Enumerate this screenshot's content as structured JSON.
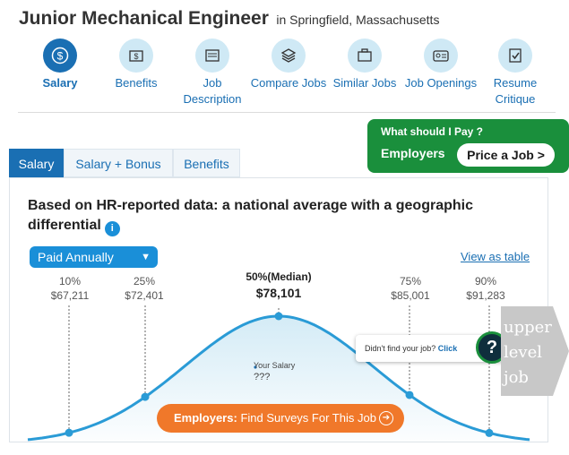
{
  "header": {
    "job_title": "Junior Mechanical Engineer",
    "location_text": "in Springfield, Massachusetts"
  },
  "nav": {
    "items": [
      {
        "label": "Salary",
        "icon": "dollar-coin-icon",
        "active": true
      },
      {
        "label": "Benefits",
        "icon": "wallet-icon",
        "active": false
      },
      {
        "label": "Job Description",
        "label_line1": "Job",
        "label_line2": "Description",
        "icon": "document-icon",
        "active": false
      },
      {
        "label": "Compare Jobs",
        "icon": "layers-icon",
        "active": false
      },
      {
        "label": "Similar Jobs",
        "icon": "briefcase-icon",
        "active": false
      },
      {
        "label": "Job Openings",
        "icon": "id-card-icon",
        "active": false
      },
      {
        "label": "Resume Critique",
        "label_line1": "Resume",
        "label_line2": "Critique",
        "icon": "resume-check-icon",
        "active": false
      }
    ]
  },
  "employer_promo": {
    "question": "What should I Pay ?",
    "employers_label": "Employers",
    "button_label": "Price a Job >"
  },
  "tabs": [
    {
      "label": "Salary",
      "active": true
    },
    {
      "label": "Salary + Bonus",
      "active": false
    },
    {
      "label": "Benefits",
      "active": false
    }
  ],
  "panel": {
    "heading": "Based on HR-reported data: a national average with a geographic differential",
    "info_icon": "i",
    "pay_select": {
      "value": "Paid Annually",
      "icon": "chevron-down-icon"
    },
    "view_as_table": "View as table"
  },
  "chart_data": {
    "type": "area",
    "percentiles": [
      {
        "label": "10%",
        "value_label": "$67,211",
        "value": 67211
      },
      {
        "label": "25%",
        "value_label": "$72,401",
        "value": 72401
      },
      {
        "label": "50%(Median)",
        "value_label": "$78,101",
        "value": 78101
      },
      {
        "label": "75%",
        "value_label": "$85,001",
        "value": 85001
      },
      {
        "label": "90%",
        "value_label": "$91,283",
        "value": 91283
      }
    ],
    "your_salary_label": "Your Salary",
    "your_salary_value": "???"
  },
  "surveys_button": {
    "prefix": "Employers:",
    "text": "Find Surveys For This Job",
    "icon": "arrow-right-circle-icon"
  },
  "help_widget": {
    "text": "Didn't find your job?",
    "link": "Click",
    "icon": "question-icon"
  },
  "overlay_tag": {
    "line1": "upper",
    "line2": "level",
    "line3": "job"
  },
  "colors": {
    "primary_blue": "#1a6fb3",
    "light_blue": "#cfe9f5",
    "chart_blue": "#2a9bd6",
    "green": "#1a8f3c",
    "orange": "#f0782a"
  }
}
